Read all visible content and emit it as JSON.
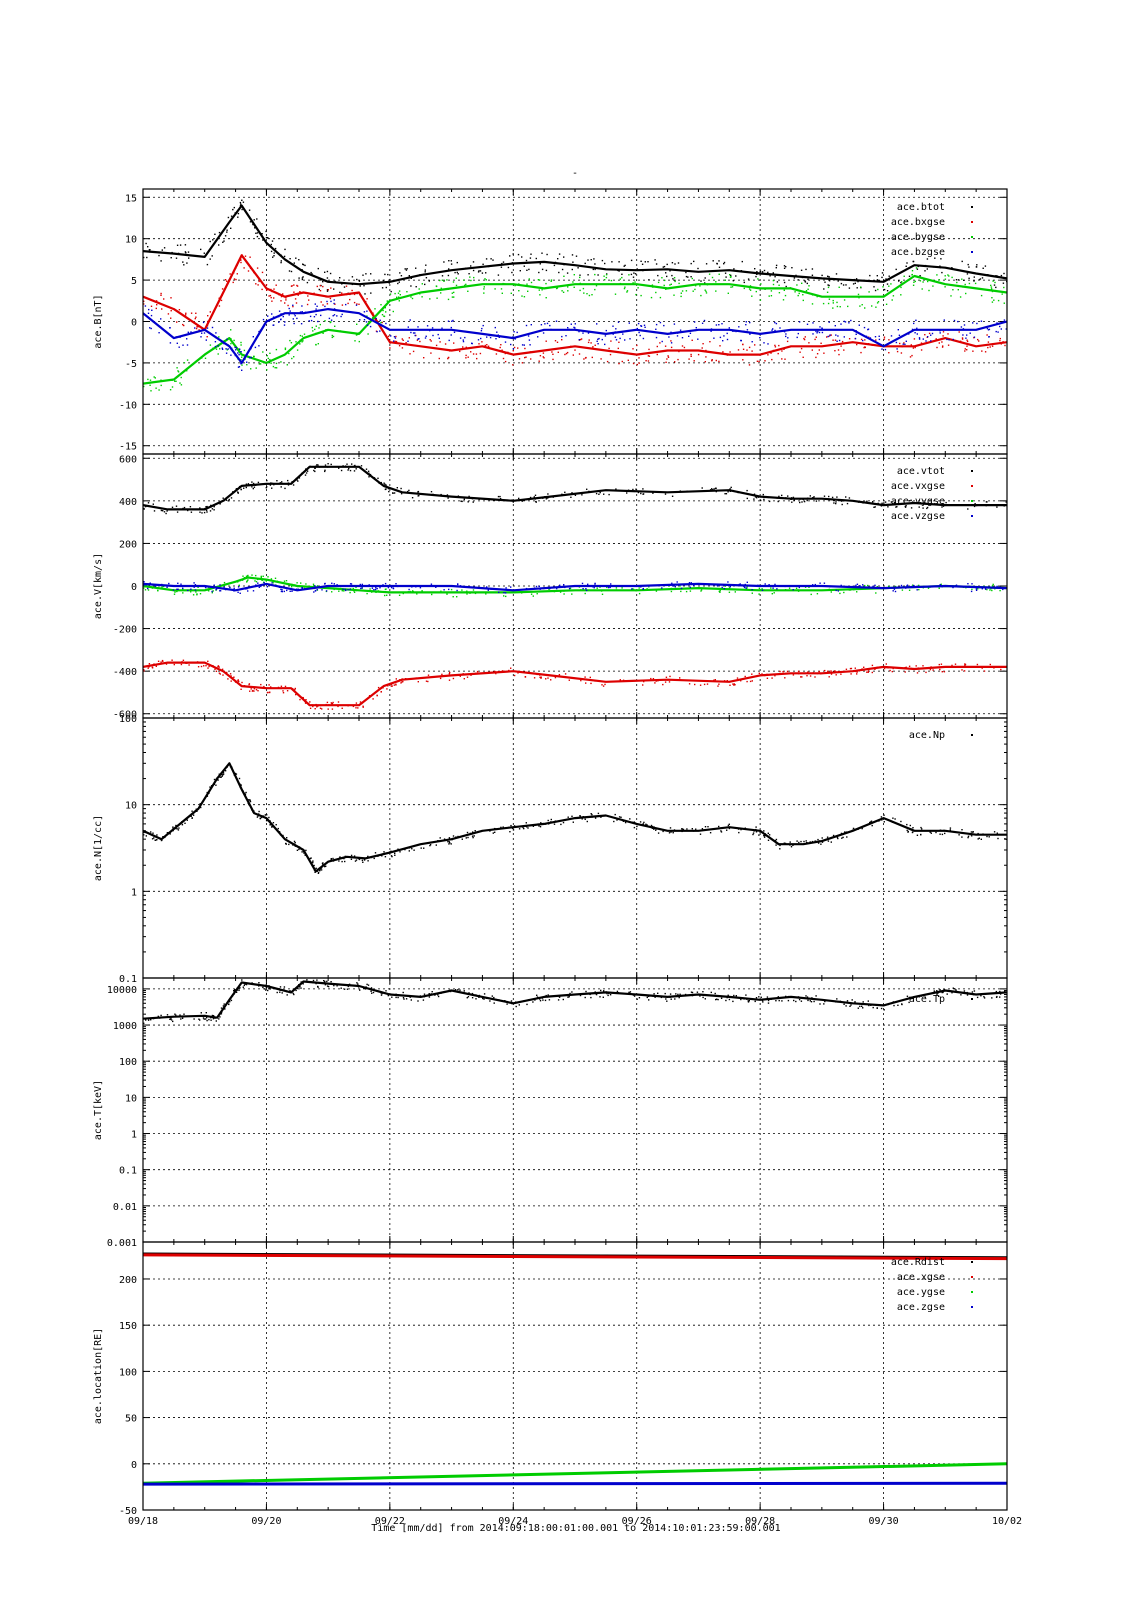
{
  "title": "-",
  "xaxis": {
    "label": "Time [mm/dd]  from 2014:09:18:00:01:00.001  to  2014:10:01:23:59:00.001",
    "range_days": [
      0,
      14
    ],
    "ticks": [
      {
        "day": 0,
        "label": "09/18"
      },
      {
        "day": 2,
        "label": "09/20"
      },
      {
        "day": 4,
        "label": "09/22"
      },
      {
        "day": 6,
        "label": "09/24"
      },
      {
        "day": 8,
        "label": "09/26"
      },
      {
        "day": 10,
        "label": "09/28"
      },
      {
        "day": 12,
        "label": "09/30"
      },
      {
        "day": 14,
        "label": "10/02"
      }
    ]
  },
  "colors": {
    "black": "#000000",
    "red": "#dd0000",
    "green": "#00cc00",
    "blue": "#0000cc"
  },
  "chart_data": [
    {
      "type": "scatter",
      "ylabel": "ace.B[nT]",
      "scale": "linear",
      "ylim": [
        -16,
        16
      ],
      "yticks": [
        -15,
        -10,
        -5,
        0,
        5,
        10,
        15
      ],
      "ytick_labels": [
        "-15",
        "-10",
        "-5",
        "0",
        "5",
        "10",
        "15"
      ],
      "series": [
        {
          "name": "ace.btot",
          "color": "black",
          "x": [
            0,
            0.5,
            1,
            1.4,
            1.6,
            2,
            2.3,
            2.6,
            3,
            3.5,
            4,
            4.5,
            5,
            5.5,
            6,
            6.5,
            7,
            7.5,
            8,
            8.5,
            9,
            9.5,
            10,
            10.5,
            11,
            11.5,
            12,
            12.5,
            13,
            13.5,
            14
          ],
          "y": [
            8.5,
            8.2,
            7.8,
            12,
            14,
            9.5,
            7.5,
            6,
            4.8,
            4.5,
            4.8,
            5.6,
            6.2,
            6.6,
            7,
            7.2,
            6.8,
            6.3,
            6.2,
            6.3,
            6.0,
            6.2,
            5.8,
            5.5,
            5.2,
            5.0,
            4.8,
            6.8,
            6.5,
            5.8,
            5.2
          ]
        },
        {
          "name": "ace.bxgse",
          "color": "red",
          "x": [
            0,
            0.5,
            1,
            1.4,
            1.6,
            2,
            2.3,
            2.6,
            3,
            3.5,
            4,
            4.5,
            5,
            5.5,
            6,
            6.5,
            7,
            7.5,
            8,
            8.5,
            9,
            9.5,
            10,
            10.5,
            11,
            11.5,
            12,
            12.5,
            13,
            13.5,
            14
          ],
          "y": [
            3,
            1.5,
            -1,
            5,
            8,
            4,
            3,
            3.5,
            3,
            3.5,
            -2.5,
            -3,
            -3.5,
            -3,
            -4,
            -3.5,
            -3,
            -3.5,
            -4,
            -3.5,
            -3.5,
            -4,
            -4,
            -3,
            -3,
            -2.5,
            -3,
            -3,
            -2,
            -3,
            -2.5
          ]
        },
        {
          "name": "ace.bygse",
          "color": "green",
          "x": [
            0,
            0.5,
            1,
            1.4,
            1.6,
            2,
            2.3,
            2.6,
            3,
            3.5,
            4,
            4.5,
            5,
            5.5,
            6,
            6.5,
            7,
            7.5,
            8,
            8.5,
            9,
            9.5,
            10,
            10.5,
            11,
            11.5,
            12,
            12.5,
            13,
            13.5,
            14
          ],
          "y": [
            -7.5,
            -7,
            -4,
            -2,
            -4,
            -5,
            -4,
            -2,
            -1,
            -1.5,
            2.5,
            3.5,
            4,
            4.5,
            4.5,
            4,
            4.5,
            4.5,
            4.5,
            4,
            4.5,
            4.5,
            4,
            4,
            3,
            3,
            3,
            5.5,
            4.5,
            4,
            3.5
          ]
        },
        {
          "name": "ace.bzgse",
          "color": "blue",
          "x": [
            0,
            0.5,
            1,
            1.4,
            1.6,
            2,
            2.3,
            2.6,
            3,
            3.5,
            4,
            4.5,
            5,
            5.5,
            6,
            6.5,
            7,
            7.5,
            8,
            8.5,
            9,
            9.5,
            10,
            10.5,
            11,
            11.5,
            12,
            12.5,
            13,
            13.5,
            14
          ],
          "y": [
            1,
            -2,
            -1,
            -3,
            -5,
            0,
            1,
            1,
            1.5,
            1,
            -1,
            -1,
            -1,
            -1.5,
            -2,
            -1,
            -1,
            -1.5,
            -1,
            -1.5,
            -1,
            -1,
            -1.5,
            -1,
            -1,
            -1,
            -3,
            -1,
            -1,
            -1,
            0
          ]
        }
      ]
    },
    {
      "type": "scatter",
      "ylabel": "ace.V[km/s]",
      "scale": "linear",
      "ylim": [
        -620,
        620
      ],
      "yticks": [
        -600,
        -400,
        -200,
        0,
        200,
        400,
        600
      ],
      "ytick_labels": [
        "-600",
        "-400",
        "-200",
        "0",
        "200",
        "400",
        "600"
      ],
      "series": [
        {
          "name": "ace.vtot",
          "color": "black",
          "x": [
            0,
            0.4,
            1,
            1.3,
            1.6,
            2,
            2.4,
            2.7,
            3,
            3.5,
            3.9,
            4.2,
            5,
            6,
            6.6,
            7.5,
            8.5,
            9.5,
            10,
            10.5,
            11,
            11.5,
            12,
            12.5,
            13,
            14
          ],
          "y": [
            380,
            360,
            360,
            400,
            470,
            480,
            480,
            560,
            560,
            560,
            470,
            440,
            420,
            400,
            420,
            450,
            440,
            450,
            420,
            410,
            410,
            400,
            380,
            390,
            380,
            380
          ]
        },
        {
          "name": "ace.vxgse",
          "color": "red",
          "x": [
            0,
            0.4,
            1,
            1.3,
            1.6,
            2,
            2.4,
            2.7,
            3,
            3.5,
            3.9,
            4.2,
            5,
            6,
            6.6,
            7.5,
            8.5,
            9.5,
            10,
            10.5,
            11,
            11.5,
            12,
            12.5,
            13,
            14
          ],
          "y": [
            -380,
            -360,
            -360,
            -400,
            -470,
            -480,
            -480,
            -560,
            -560,
            -560,
            -470,
            -440,
            -420,
            -400,
            -420,
            -450,
            -440,
            -450,
            -420,
            -410,
            -410,
            -400,
            -380,
            -390,
            -380,
            -380
          ]
        },
        {
          "name": "ace.vygse",
          "color": "green",
          "x": [
            0,
            0.5,
            1,
            1.5,
            1.7,
            2,
            2.5,
            3,
            3.5,
            4,
            5,
            6,
            7,
            8,
            9,
            10,
            11,
            12,
            13,
            14
          ],
          "y": [
            0,
            -20,
            -20,
            20,
            40,
            30,
            0,
            -10,
            -20,
            -30,
            -30,
            -30,
            -20,
            -20,
            -10,
            -20,
            -20,
            -10,
            0,
            -10
          ]
        },
        {
          "name": "ace.vzgse",
          "color": "blue",
          "x": [
            0,
            0.5,
            1,
            1.5,
            2,
            2.5,
            3,
            3.5,
            4,
            5,
            6,
            7,
            8,
            9,
            10,
            11,
            12,
            13,
            14
          ],
          "y": [
            10,
            0,
            0,
            -20,
            10,
            -20,
            0,
            0,
            0,
            0,
            -20,
            0,
            0,
            10,
            0,
            0,
            -10,
            0,
            -10
          ]
        }
      ]
    },
    {
      "type": "scatter",
      "ylabel": "ace.N[1/cc]",
      "scale": "log",
      "ylim": [
        0.1,
        100
      ],
      "yticks": [
        0.1,
        1,
        10,
        100
      ],
      "ytick_labels": [
        "0.1",
        "1",
        "10",
        "100"
      ],
      "series": [
        {
          "name": "ace.Np",
          "color": "black",
          "x": [
            0,
            0.3,
            0.6,
            0.9,
            1.2,
            1.4,
            1.6,
            1.8,
            2,
            2.3,
            2.6,
            2.8,
            3,
            3.3,
            3.6,
            4,
            4.5,
            5,
            5.5,
            6,
            6.5,
            7,
            7.5,
            8,
            8.5,
            9,
            9.5,
            10,
            10.3,
            10.7,
            11,
            11.5,
            12,
            12.5,
            13,
            13.5,
            14
          ],
          "y": [
            5,
            4,
            6,
            9,
            20,
            30,
            15,
            8,
            7,
            4,
            3,
            1.7,
            2.2,
            2.5,
            2.4,
            2.8,
            3.5,
            4,
            5,
            5.5,
            6,
            7,
            7.5,
            6,
            5,
            5,
            5.5,
            5,
            3.5,
            3.5,
            3.8,
            5,
            7,
            5,
            5,
            4.5,
            4.5
          ]
        }
      ]
    },
    {
      "type": "scatter",
      "ylabel": "ace.T[keV]",
      "scale": "log",
      "ylim": [
        0.001,
        20000
      ],
      "yticks": [
        0.001,
        0.01,
        0.1,
        1,
        10,
        100,
        1000,
        10000
      ],
      "ytick_labels": [
        "0.001",
        "0.01",
        "0.1",
        "1",
        "10",
        "100",
        "1000",
        "10000"
      ],
      "series": [
        {
          "name": "ace.Tp",
          "color": "black",
          "x": [
            0,
            0.5,
            1,
            1.2,
            1.4,
            1.6,
            2,
            2.4,
            2.6,
            3,
            3.5,
            4,
            4.5,
            5,
            5.5,
            6,
            6.5,
            7,
            7.5,
            8,
            8.5,
            9,
            9.5,
            10,
            10.5,
            11,
            11.5,
            12,
            12.5,
            13,
            13.5,
            14
          ],
          "y": [
            1500,
            1700,
            1800,
            1600,
            5000,
            15000,
            12000,
            8000,
            16000,
            14000,
            12000,
            7000,
            6000,
            9000,
            6000,
            4000,
            6000,
            7000,
            8000,
            7000,
            6000,
            7000,
            6000,
            5000,
            6000,
            5000,
            4000,
            3500,
            6000,
            9000,
            7000,
            8000
          ]
        }
      ]
    },
    {
      "type": "line",
      "ylabel": "ace.location[RE]",
      "scale": "linear",
      "ylim": [
        -50,
        240
      ],
      "yticks": [
        -50,
        0,
        50,
        100,
        150,
        200
      ],
      "ytick_labels": [
        "-50",
        "0",
        "50",
        "100",
        "150",
        "200"
      ],
      "series": [
        {
          "name": "ace.Rdist",
          "color": "black",
          "x": [
            0,
            14
          ],
          "y": [
            227,
            223
          ]
        },
        {
          "name": "ace.xgse",
          "color": "red",
          "x": [
            0,
            14
          ],
          "y": [
            226,
            222
          ]
        },
        {
          "name": "ace.ygse",
          "color": "green",
          "x": [
            0,
            14
          ],
          "y": [
            -21,
            0
          ]
        },
        {
          "name": "ace.zgse",
          "color": "blue",
          "x": [
            0,
            14
          ],
          "y": [
            -22,
            -21
          ]
        }
      ]
    }
  ]
}
